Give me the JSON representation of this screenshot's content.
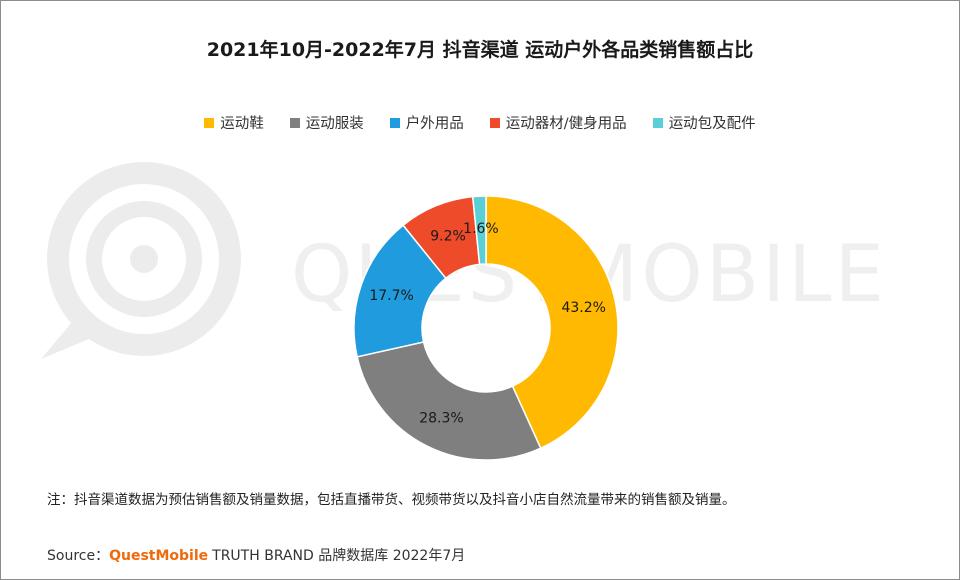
{
  "title": "2021年10月-2022年7月 抖音渠道 运动户外各品类销售额占比",
  "chart_data": {
    "type": "pie",
    "subtype": "donut",
    "title": "2021年10月-2022年7月 抖音渠道 运动户外各品类销售额占比",
    "legend_position": "top",
    "series": [
      {
        "name": "运动鞋",
        "value": 43.2,
        "label": "43.2%",
        "color": "#FFB900"
      },
      {
        "name": "运动服装",
        "value": 28.3,
        "label": "28.3%",
        "color": "#7F7F7F"
      },
      {
        "name": "户外用品",
        "value": 17.7,
        "label": "17.7%",
        "color": "#1F9BDE"
      },
      {
        "name": "运动器材/健身用品",
        "value": 9.2,
        "label": "9.2%",
        "color": "#EE4B2B"
      },
      {
        "name": "运动包及配件",
        "value": 1.6,
        "label": "1.6%",
        "color": "#5ACFD5"
      }
    ]
  },
  "watermark": "QUESTMOBILE",
  "note": "注：抖音渠道数据为预估销售额及销量数据，包括直播带货、视频带货以及抖音小店自然流量带来的销售额及销量。",
  "source": {
    "prefix": "Source：",
    "brand": "QuestMobile",
    "suffix": "TRUTH BRAND 品牌数据库 2022年7月"
  }
}
